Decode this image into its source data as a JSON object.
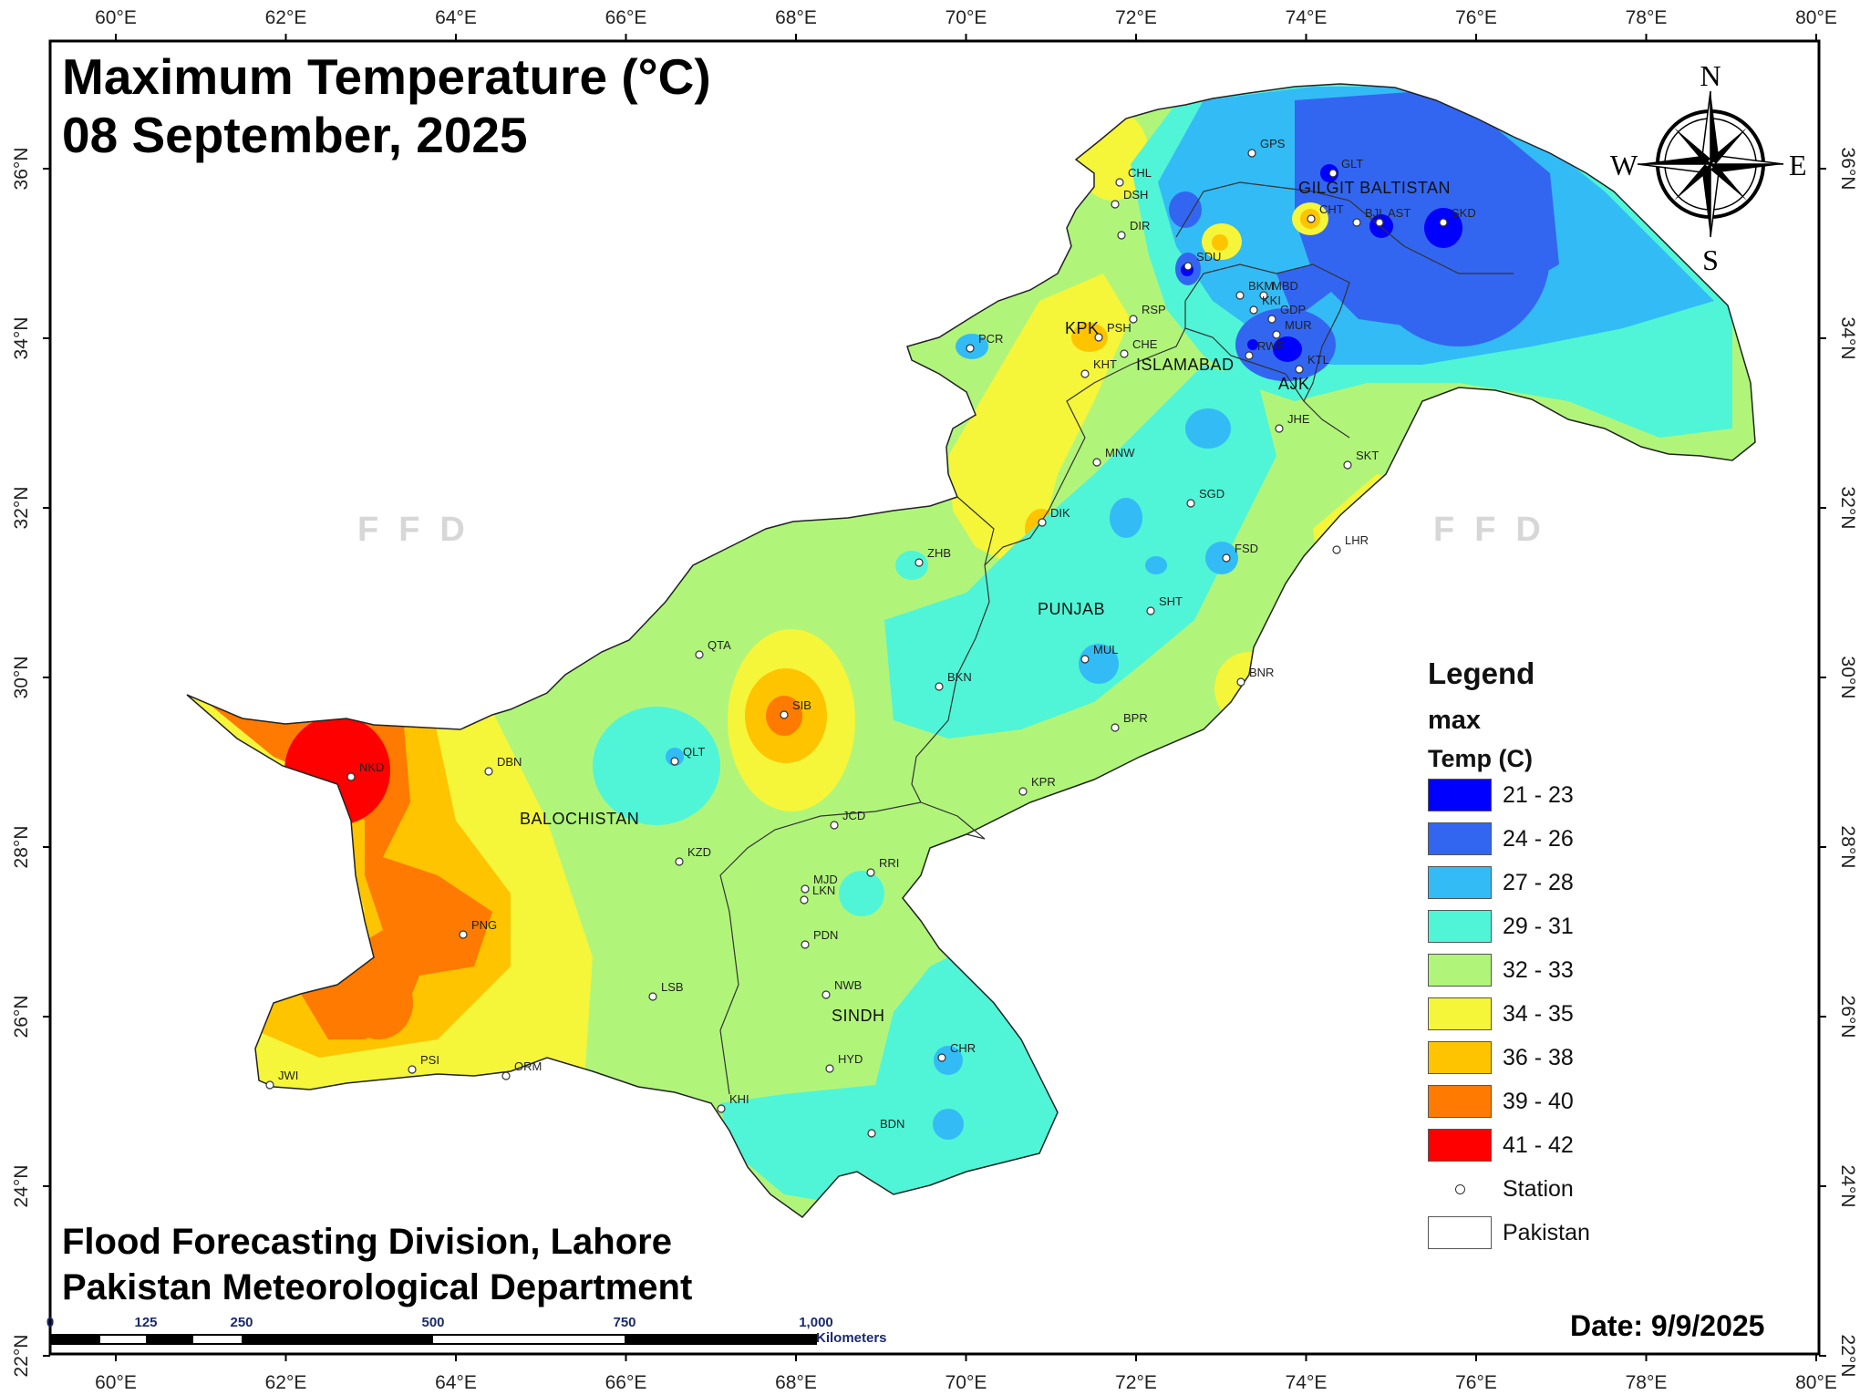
{
  "title": {
    "line1": "Maximum Temperature (°C)",
    "line2": "08 September, 2025"
  },
  "footer": {
    "line1": "Flood Forecasting Division, Lahore",
    "line2": "Pakistan Meteorological Department"
  },
  "date": "Date: 9/9/2025",
  "watermark": "FFD",
  "north_arrow": {
    "n": "N",
    "s": "S",
    "e": "E",
    "w": "W"
  },
  "axes": {
    "longitude_ticks": [
      "60°E",
      "62°E",
      "64°E",
      "66°E",
      "68°E",
      "70°E",
      "72°E",
      "74°E",
      "76°E",
      "78°E",
      "80°E"
    ],
    "latitude_ticks": [
      "36°N",
      "34°N",
      "32°N",
      "30°N",
      "28°N",
      "26°N",
      "24°N",
      "22°N"
    ]
  },
  "legend": {
    "heading": "Legend",
    "field": "max",
    "unit": "Temp (C)",
    "classes": [
      {
        "label": "21 - 23",
        "color": "#0000ff"
      },
      {
        "label": "24 - 26",
        "color": "#3366f0"
      },
      {
        "label": "27 - 28",
        "color": "#33bbf5"
      },
      {
        "label": "29 - 31",
        "color": "#4ff5d6"
      },
      {
        "label": "32 - 33",
        "color": "#b0f57a"
      },
      {
        "label": "34 - 35",
        "color": "#f5f53a"
      },
      {
        "label": "36 - 38",
        "color": "#ffc400"
      },
      {
        "label": "39 - 40",
        "color": "#ff7a00"
      },
      {
        "label": "41 - 42",
        "color": "#ff0000"
      }
    ],
    "station_label": "Station",
    "boundary_label": "Pakistan"
  },
  "regions": [
    "GILGIT BALTISTAN",
    "KPK",
    "ISLAMABAD",
    "AJK",
    "PUNJAB",
    "BALOCHISTAN",
    "SINDH"
  ],
  "stations": [
    "CHL",
    "DSH",
    "DIR",
    "GPS",
    "GLT",
    "CHT",
    "BJI",
    "AST",
    "SKD",
    "SDU",
    "BKM",
    "MBD",
    "KKI",
    "GDP",
    "MUR",
    "RWP",
    "KTL",
    "PCR",
    "PSH",
    "RSP",
    "CHE",
    "KHT",
    "JHE",
    "SKT",
    "MNW",
    "SGD",
    "DIK",
    "FSD",
    "LHR",
    "ZHB",
    "SHT",
    "QTA",
    "MUL",
    "BKN",
    "BNR",
    "SIB",
    "BPR",
    "QLT",
    "NKD",
    "DBN",
    "KPR",
    "JCD",
    "KZD",
    "RRI",
    "LKN",
    "MJD",
    "PNG",
    "PDN",
    "LSB",
    "NWB",
    "HYD",
    "CHR",
    "JWI",
    "PSI",
    "ORM",
    "KHI",
    "BDN"
  ],
  "scale_bar": {
    "ticks": [
      "0",
      "125",
      "250",
      "500",
      "750",
      "1,000"
    ],
    "unit": "Kilometers"
  }
}
